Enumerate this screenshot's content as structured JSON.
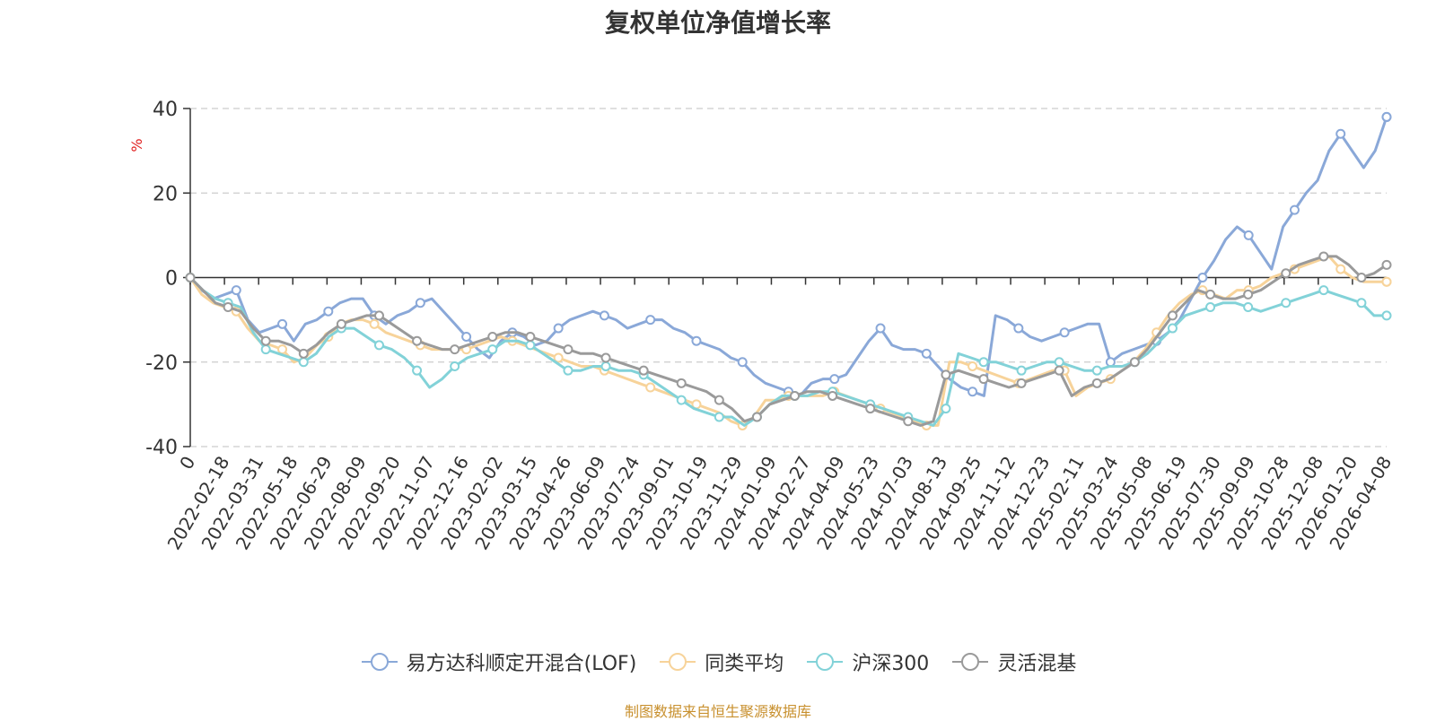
{
  "chart_data": {
    "type": "line",
    "title": "复权单位净值增长率",
    "ylabel": "%",
    "ylim": [
      -40,
      40
    ],
    "yticks": [
      -40,
      -20,
      0,
      20,
      40
    ],
    "grid": true,
    "legend_position": "bottom",
    "x_tick_labels": [
      "0",
      "2022-02-18",
      "2022-03-31",
      "2022-05-18",
      "2022-06-29",
      "2022-08-09",
      "2022-09-20",
      "2022-11-07",
      "2022-12-16",
      "2023-02-02",
      "2023-03-15",
      "2023-04-26",
      "2023-06-09",
      "2023-07-24",
      "2023-09-01",
      "2023-10-19",
      "2023-11-29",
      "2024-01-09",
      "2024-02-27",
      "2024-04-09",
      "2024-05-23",
      "2024-07-03",
      "2024-08-13",
      "2024-09-25",
      "2024-11-12",
      "2024-12-23",
      "2025-02-11",
      "2025-03-24",
      "2025-05-08",
      "2025-06-19",
      "2025-07-30",
      "2025-09-09",
      "2025-10-28",
      "2025-12-08",
      "2026-01-20",
      "2026-04-08"
    ],
    "series": [
      {
        "name": "易方达科顺定开混合(LOF)",
        "color": "#8aa8d8",
        "values": [
          0,
          -3,
          -5,
          -4,
          -3,
          -10,
          -13,
          -12,
          -11,
          -15,
          -11,
          -10,
          -8,
          -6,
          -5,
          -5,
          -9,
          -11,
          -9,
          -8,
          -6,
          -5,
          -8,
          -11,
          -14,
          -17,
          -19,
          -15,
          -13,
          -14,
          -16,
          -15,
          -12,
          -10,
          -9,
          -8,
          -9,
          -10,
          -12,
          -11,
          -10,
          -10,
          -12,
          -13,
          -15,
          -16,
          -17,
          -19,
          -20,
          -23,
          -25,
          -26,
          -27,
          -28,
          -25,
          -24,
          -24,
          -23,
          -19,
          -15,
          -12,
          -16,
          -17,
          -17,
          -18,
          -21,
          -24,
          -26,
          -27,
          -28,
          -9,
          -10,
          -12,
          -14,
          -15,
          -14,
          -13,
          -12,
          -11,
          -11,
          -20,
          -18,
          -17,
          -16,
          -15,
          -13,
          -10,
          -5,
          0,
          4,
          9,
          12,
          10,
          6,
          2,
          12,
          16,
          20,
          23,
          30,
          34,
          30,
          26,
          30,
          38
        ]
      },
      {
        "name": "同类平均",
        "color": "#f7d39a",
        "values": [
          0,
          -4,
          -6,
          -7,
          -8,
          -12,
          -15,
          -16,
          -17,
          -20,
          -19,
          -16,
          -14,
          -11,
          -10,
          -10,
          -11,
          -13,
          -14,
          -15,
          -16,
          -17,
          -17,
          -17,
          -17,
          -16,
          -15,
          -14,
          -15,
          -16,
          -17,
          -18,
          -19,
          -20,
          -21,
          -21,
          -22,
          -23,
          -24,
          -25,
          -26,
          -27,
          -28,
          -29,
          -30,
          -31,
          -32,
          -34,
          -35,
          -33,
          -29,
          -29,
          -28,
          -28,
          -28,
          -28,
          -27,
          -28,
          -29,
          -30,
          -31,
          -32,
          -33,
          -34,
          -35,
          -35,
          -20,
          -20,
          -21,
          -22,
          -23,
          -24,
          -25,
          -24,
          -23,
          -22,
          -22,
          -28,
          -26,
          -25,
          -24,
          -22,
          -20,
          -17,
          -13,
          -9,
          -6,
          -4,
          -3,
          -4,
          -5,
          -3,
          -3,
          -2,
          0,
          1,
          2,
          3,
          4,
          5,
          2,
          0,
          -1,
          -1,
          -1
        ]
      },
      {
        "name": "沪深300",
        "color": "#82d2d8",
        "values": [
          0,
          -3,
          -5,
          -6,
          -7,
          -13,
          -17,
          -18,
          -19,
          -20,
          -18,
          -14,
          -12,
          -12,
          -14,
          -16,
          -17,
          -19,
          -22,
          -26,
          -24,
          -21,
          -19,
          -18,
          -17,
          -15,
          -15,
          -16,
          -18,
          -20,
          -22,
          -22,
          -21,
          -21,
          -22,
          -22,
          -23,
          -25,
          -27,
          -29,
          -31,
          -32,
          -33,
          -33,
          -35,
          -33,
          -30,
          -28,
          -28,
          -28,
          -27,
          -27,
          -28,
          -29,
          -30,
          -31,
          -32,
          -33,
          -34,
          -35,
          -31,
          -18,
          -19,
          -20,
          -20,
          -21,
          -22,
          -21,
          -20,
          -20,
          -21,
          -22,
          -22,
          -21,
          -21,
          -20,
          -18,
          -15,
          -12,
          -9,
          -8,
          -7,
          -6,
          -6,
          -7,
          -8,
          -7,
          -6,
          -5,
          -4,
          -3,
          -4,
          -5,
          -6,
          -9,
          -9
        ]
      },
      {
        "name": "灵活混基",
        "color": "#9a9a9a",
        "values": [
          0,
          -3,
          -6,
          -7,
          -8,
          -12,
          -15,
          -15,
          -16,
          -18,
          -16,
          -13,
          -11,
          -10,
          -9,
          -9,
          -11,
          -13,
          -15,
          -16,
          -17,
          -17,
          -16,
          -15,
          -14,
          -13,
          -13,
          -14,
          -15,
          -16,
          -17,
          -18,
          -18,
          -19,
          -20,
          -21,
          -22,
          -23,
          -24,
          -25,
          -26,
          -27,
          -29,
          -31,
          -34,
          -33,
          -30,
          -29,
          -28,
          -27,
          -27,
          -28,
          -29,
          -30,
          -31,
          -32,
          -33,
          -34,
          -35,
          -34,
          -23,
          -22,
          -23,
          -24,
          -25,
          -26,
          -25,
          -24,
          -23,
          -22,
          -28,
          -26,
          -25,
          -24,
          -22,
          -20,
          -17,
          -13,
          -9,
          -6,
          -3,
          -4,
          -5,
          -5,
          -4,
          -3,
          -1,
          1,
          3,
          4,
          5,
          5,
          3,
          0,
          1,
          3
        ]
      }
    ]
  },
  "source_note": "制图数据来自恒生聚源数据库"
}
